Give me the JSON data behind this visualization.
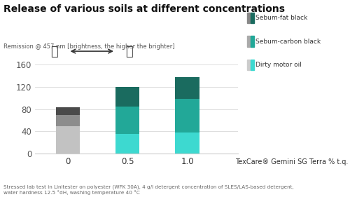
{
  "title": "Release of various soils at different concentrations",
  "ylabel_text": "Remission @ 457 nm [brightness, the higher the brighter]",
  "xlabel_suffix": "TexCare® Gemini SG Terra % t.q.",
  "categories": [
    "0",
    "0.5",
    "1.0"
  ],
  "dirty_vals": [
    50,
    35,
    38
  ],
  "carbon_vals": [
    20,
    50,
    60
  ],
  "fat_vals": [
    14,
    35,
    40
  ],
  "dirty_colors": [
    "#c2c2c2",
    "#3dd9d0",
    "#3dd9d0"
  ],
  "carbon_colors": [
    "#8c8c8c",
    "#22a898",
    "#22a898"
  ],
  "fat_colors": [
    "#4a4a4a",
    "#1a6b5f",
    "#1a6b5f"
  ],
  "legend_fat_dark": "#1a6b5f",
  "legend_fat_light": "#888888",
  "legend_carbon_dark": "#22a898",
  "legend_carbon_light": "#aaaaaa",
  "legend_dirty_dark": "#3dd9d0",
  "legend_dirty_light": "#c8c8c8",
  "ylim": [
    0,
    170
  ],
  "yticks": [
    0,
    40,
    80,
    120,
    160
  ],
  "footnote": "Stressed lab test in Linitester on polyester (WFK 30A), 4 g/l detergent concentration of SLES/LAS-based detergent,\nwater hardness 12.5 °dH, washing temperature 40 °C",
  "bg_color": "#ffffff",
  "bar_width": 0.4
}
